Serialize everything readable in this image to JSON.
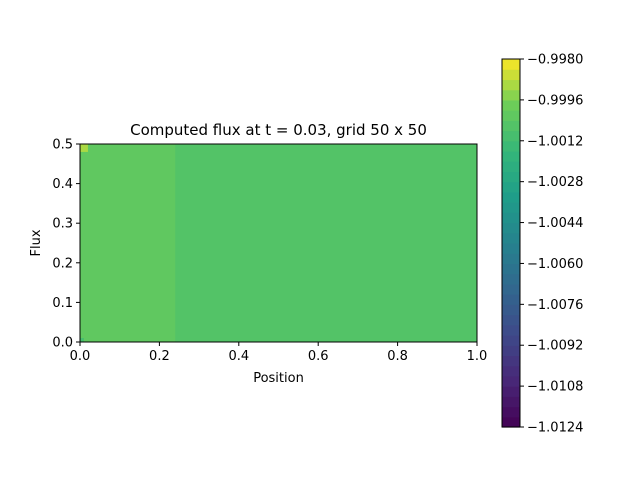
{
  "chart_data": {
    "type": "heatmap",
    "title": "Computed flux at t = 0.03, grid 50 x 50",
    "xlabel": "Position",
    "ylabel": "Flux",
    "xlim": [
      0.0,
      1.0
    ],
    "ylim": [
      0.0,
      0.5
    ],
    "x_ticks": [
      "0.0",
      "0.2",
      "0.4",
      "0.6",
      "0.8",
      "1.0"
    ],
    "y_ticks": [
      "0.0",
      "0.1",
      "0.2",
      "0.3",
      "0.4",
      "0.5"
    ],
    "grid": false,
    "colormap": "viridis",
    "colorbar": {
      "min": -1.0124,
      "max": -0.998,
      "levels": 36,
      "tick_labels": [
        "−1.0124",
        "−1.0108",
        "−1.0092",
        "−1.0076",
        "−1.0060",
        "−1.0044",
        "−1.0028",
        "−1.0012",
        "−0.9996",
        "−0.9980"
      ]
    },
    "regions": [
      {
        "x": [
          0.0,
          1.0
        ],
        "y": [
          0.0,
          0.5
        ],
        "value": -1.0006
      },
      {
        "x": [
          0.0,
          0.24
        ],
        "y": [
          0.0,
          0.5
        ],
        "value": -1.0001
      },
      {
        "x": [
          0.0,
          0.02
        ],
        "y": [
          0.48,
          0.5
        ],
        "value": -0.9992
      },
      {
        "x": [
          0.0,
          0.01
        ],
        "y": [
          0.0,
          0.01
        ],
        "value": -1.0009
      }
    ]
  }
}
